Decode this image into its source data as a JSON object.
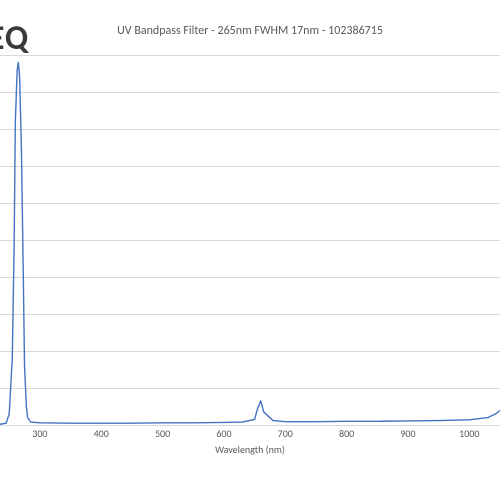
{
  "logo": {
    "text": "TEQ",
    "color": "#3a3a3a",
    "fontsize": 34
  },
  "title": {
    "text": "UV Bandpass Filter - 265nm FWHM 17nm - 102386715",
    "color": "#595959",
    "fontsize": 12
  },
  "chart": {
    "type": "line",
    "background_color": "#ffffff",
    "grid_color": "#d9d9d9",
    "series_color": "#4472c4",
    "line_width": 1.4,
    "x_axis": {
      "label": "Wavelength (nm)",
      "label_fontsize": 10,
      "label_color": "#595959",
      "tick_color": "#595959",
      "tick_fontsize": 10,
      "xlim": [
        235,
        1050
      ],
      "ticks": [
        300,
        400,
        500,
        600,
        700,
        800,
        900,
        1000
      ]
    },
    "y_axis": {
      "ylim": [
        0,
        100
      ],
      "n_gridlines": 11
    },
    "series": {
      "x": [
        235,
        245,
        250,
        255,
        258,
        260,
        263,
        265,
        267,
        270,
        273,
        275,
        278,
        280,
        285,
        300,
        350,
        400,
        450,
        500,
        550,
        600,
        630,
        650,
        655,
        660,
        665,
        680,
        700,
        750,
        800,
        850,
        900,
        950,
        1000,
        1030,
        1045,
        1050
      ],
      "y": [
        0.2,
        0.5,
        3,
        18,
        48,
        82,
        96,
        98,
        94,
        74,
        40,
        16,
        5,
        2,
        0.8,
        0.6,
        0.5,
        0.5,
        0.5,
        0.6,
        0.6,
        0.7,
        0.8,
        1.5,
        4.5,
        6.5,
        3.5,
        1.2,
        0.9,
        0.9,
        1.0,
        1.0,
        1.1,
        1.2,
        1.4,
        2.0,
        3.2,
        4.0
      ]
    }
  }
}
